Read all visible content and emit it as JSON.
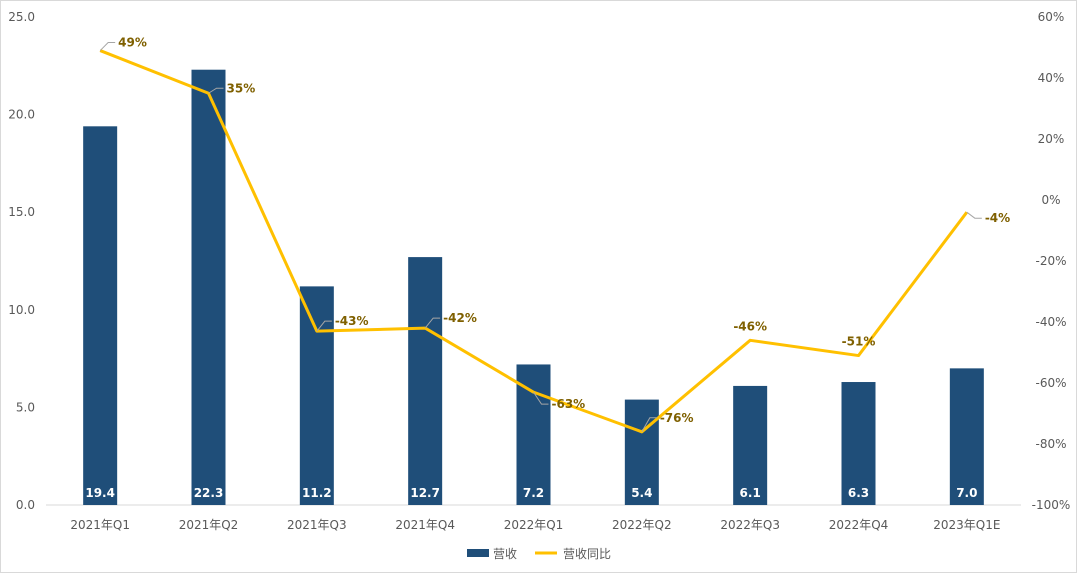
{
  "chart_data": {
    "type": "bar+line",
    "title": "",
    "categories": [
      "2021年Q1",
      "2021年Q2",
      "2021年Q3",
      "2021年Q4",
      "2022年Q1",
      "2022年Q2",
      "2022年Q3",
      "2022年Q4",
      "2023年Q1E"
    ],
    "series": [
      {
        "name": "营收",
        "type": "bar",
        "axis": "left",
        "color": "#1f4e79",
        "values": [
          19.4,
          22.3,
          11.2,
          12.7,
          7.2,
          5.4,
          6.1,
          6.3,
          7.0
        ],
        "labels": [
          "19.4",
          "22.3",
          "11.2",
          "12.7",
          "7.2",
          "5.4",
          "6.1",
          "6.3",
          "7.0"
        ]
      },
      {
        "name": "营收同比",
        "type": "line",
        "axis": "right",
        "color": "#ffc000",
        "values": [
          49,
          35,
          -43,
          -42,
          -63,
          -76,
          -46,
          -51,
          -4
        ],
        "labels": [
          "49%",
          "35%",
          "-43%",
          "-42%",
          "-63%",
          "-76%",
          "-46%",
          "-51%",
          "-4%"
        ]
      }
    ],
    "left_axis": {
      "ylim": [
        0,
        25
      ],
      "ticks": [
        0,
        5,
        10,
        15,
        20,
        25
      ],
      "tick_labels": [
        "0.0",
        "5.0",
        "10.0",
        "15.0",
        "20.0",
        "25.0"
      ]
    },
    "right_axis": {
      "ylim": [
        -100,
        60
      ],
      "ticks": [
        -100,
        -80,
        -60,
        -40,
        -20,
        0,
        20,
        40,
        60
      ],
      "tick_labels": [
        "-100%",
        "-80%",
        "-60%",
        "-40%",
        "-20%",
        "0%",
        "20%",
        "40%",
        "60%"
      ]
    },
    "grid": false,
    "legend_position": "bottom-center"
  }
}
